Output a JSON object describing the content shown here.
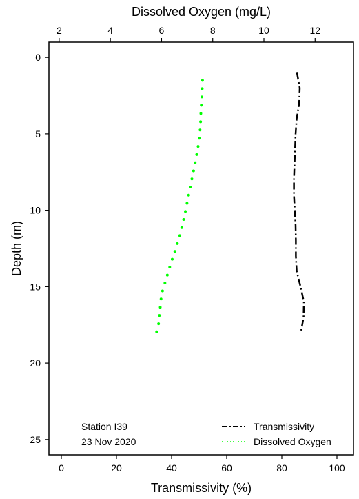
{
  "chart_data": {
    "type": "line",
    "annotation": [
      "Station I39",
      "23 Nov 2020"
    ],
    "y": {
      "label": "Depth (m)",
      "lim": [
        -1,
        26
      ],
      "inverted": true,
      "ticks": [
        0,
        5,
        10,
        15,
        20,
        25
      ]
    },
    "x_bottom": {
      "label": "Transmissivity (%)",
      "lim": [
        -4.5,
        106
      ],
      "ticks": [
        0,
        20,
        40,
        60,
        80,
        100
      ]
    },
    "x_top": {
      "label": "Dissolved Oxygen (mg/L)",
      "lim": [
        1.6,
        13.5
      ],
      "ticks": [
        2,
        4,
        6,
        8,
        10,
        12
      ]
    },
    "grid": false,
    "legend_position": "bottom-right",
    "series": [
      {
        "name": "Transmissivity",
        "axis": "bottom",
        "style": "dashdot",
        "color": "#000000",
        "depth": [
          1,
          2,
          3,
          4,
          5,
          6,
          7,
          8,
          9,
          10,
          11,
          12,
          13,
          14,
          15,
          16,
          17,
          18
        ],
        "values": [
          85.5,
          86.5,
          86.3,
          85.4,
          85.0,
          84.8,
          84.6,
          84.4,
          84.4,
          84.7,
          85.0,
          85.1,
          85.1,
          85.4,
          86.8,
          88.0,
          87.9,
          86.9
        ]
      },
      {
        "name": "Dissolved Oxygen",
        "axis": "top",
        "style": "dotted",
        "color": "#00ff00",
        "depth": [
          1.5,
          2.5,
          3.5,
          4.5,
          5.5,
          6.5,
          7.5,
          8.5,
          9.5,
          10.5,
          11.5,
          12.5,
          13.5,
          14.5,
          15.5,
          16.5,
          17.5,
          18.0
        ],
        "values": [
          7.6,
          7.58,
          7.54,
          7.52,
          7.46,
          7.36,
          7.24,
          7.12,
          7.0,
          6.88,
          6.74,
          6.56,
          6.36,
          6.18,
          6.0,
          5.94,
          5.88,
          5.8
        ]
      }
    ]
  }
}
